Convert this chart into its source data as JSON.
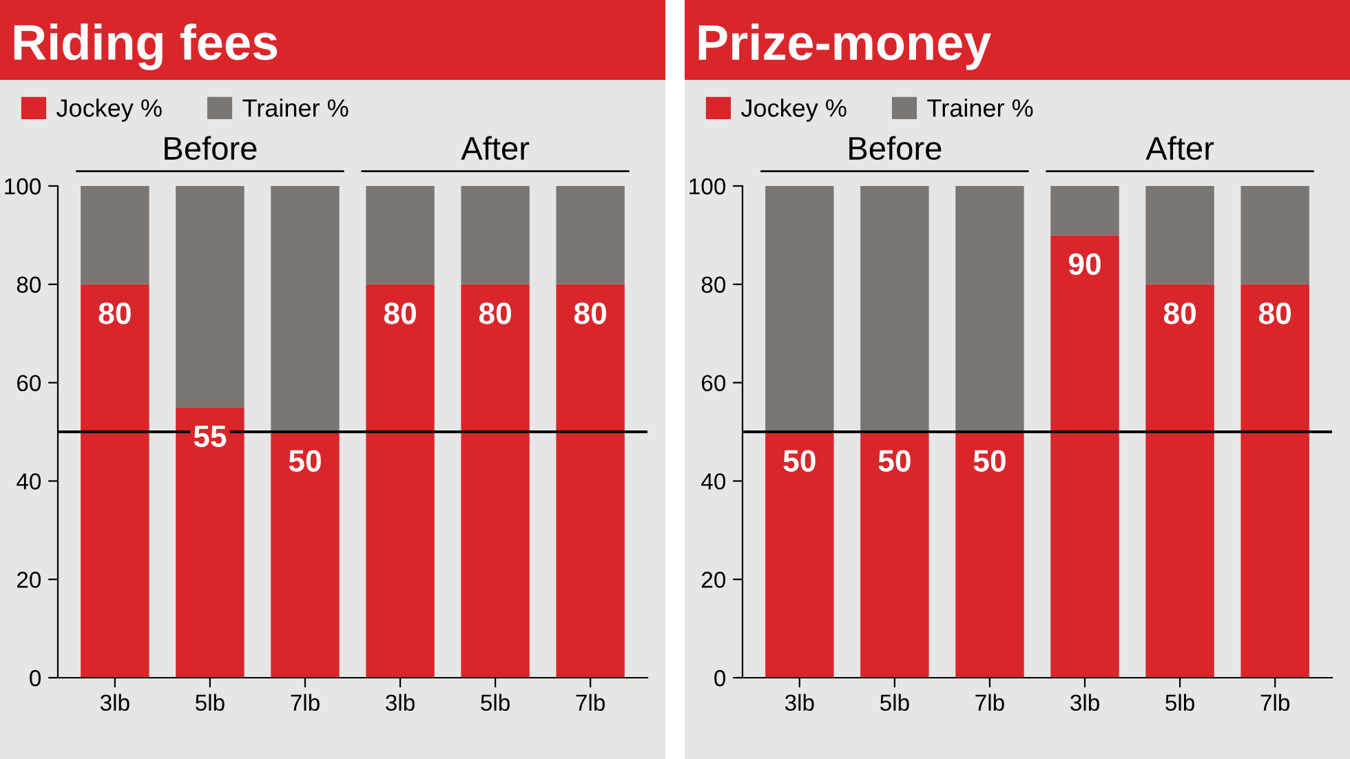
{
  "chart_data": [
    {
      "type": "bar",
      "title": "Riding fees",
      "stacked": true,
      "categories": [
        "3lb",
        "5lb",
        "7lb",
        "3lb",
        "5lb",
        "7lb"
      ],
      "series": [
        {
          "name": "Jockey %",
          "color": "#d9262b",
          "values": [
            80,
            55,
            50,
            80,
            80,
            80
          ],
          "value_labels": [
            "80",
            "55",
            "50",
            "80",
            "80",
            "80"
          ]
        },
        {
          "name": "Trainer %",
          "color": "#7a7674",
          "values": [
            20,
            45,
            50,
            20,
            20,
            20
          ]
        }
      ],
      "ylim": [
        0,
        100
      ],
      "yticks": [
        0,
        20,
        40,
        60,
        80,
        100
      ],
      "grid": false,
      "legend": "top left",
      "ref_lines": [
        {
          "axis": "y",
          "value": 50,
          "color": "#000000"
        }
      ],
      "annotations": [
        "Before",
        "After"
      ]
    },
    {
      "type": "bar",
      "title": "Prize-money",
      "stacked": true,
      "categories": [
        "3lb",
        "5lb",
        "7lb",
        "3lb",
        "5lb",
        "7lb"
      ],
      "series": [
        {
          "name": "Jockey %",
          "color": "#d9262b",
          "values": [
            50,
            50,
            50,
            90,
            80,
            80
          ],
          "value_labels": [
            "50",
            "50",
            "50",
            "90",
            "80",
            "80"
          ]
        },
        {
          "name": "Trainer %",
          "color": "#7a7674",
          "values": [
            50,
            50,
            50,
            10,
            20,
            20
          ]
        }
      ],
      "ylim": [
        0,
        100
      ],
      "yticks": [
        0,
        20,
        40,
        60,
        80,
        100
      ],
      "grid": false,
      "legend": "top left",
      "ref_lines": [
        {
          "axis": "y",
          "value": 50,
          "color": "#000000"
        }
      ],
      "annotations": [
        "Before",
        "After"
      ]
    }
  ]
}
